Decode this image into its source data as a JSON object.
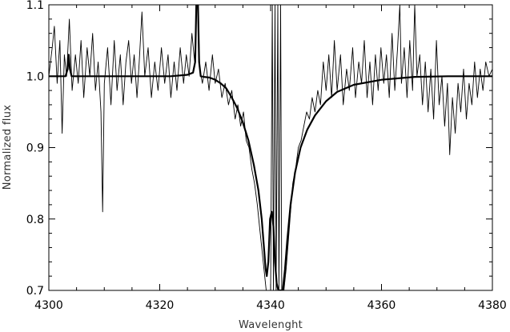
{
  "chart_data": {
    "type": "line",
    "title": "",
    "xlabel": "Wavelenght",
    "ylabel": "Normalized flux",
    "xlim": [
      4300,
      4380
    ],
    "ylim": [
      0.7,
      1.1
    ],
    "x_ticks": [
      4300,
      4320,
      4340,
      4360,
      4380
    ],
    "x_tick_labels": [
      "4300",
      "4320",
      "4340",
      "4360",
      "4380"
    ],
    "y_ticks": [
      0.7,
      0.8,
      0.9,
      1.0,
      1.1
    ],
    "y_tick_labels": [
      "0.7",
      "0.8",
      "0.9",
      "1.0",
      "1.1"
    ],
    "grid": false,
    "series": [
      {
        "role": "observed",
        "color": "#000000",
        "points": [
          [
            4300.0,
            1.0
          ],
          [
            4300.6,
            1.04
          ],
          [
            4301.0,
            1.07
          ],
          [
            4301.5,
            0.99
          ],
          [
            4302.0,
            1.05
          ],
          [
            4302.4,
            0.92
          ],
          [
            4302.8,
            1.03
          ],
          [
            4303.2,
            1.0
          ],
          [
            4303.7,
            1.08
          ],
          [
            4304.2,
            0.98
          ],
          [
            4304.8,
            1.03
          ],
          [
            4305.3,
            0.99
          ],
          [
            4305.8,
            1.05
          ],
          [
            4306.3,
            0.97
          ],
          [
            4306.9,
            1.04
          ],
          [
            4307.4,
            1.0
          ],
          [
            4307.9,
            1.06
          ],
          [
            4308.4,
            0.98
          ],
          [
            4308.9,
            1.02
          ],
          [
            4309.4,
            0.95
          ],
          [
            4309.7,
            0.81
          ],
          [
            4310.0,
            0.99
          ],
          [
            4310.6,
            1.04
          ],
          [
            4311.2,
            0.96
          ],
          [
            4311.8,
            1.05
          ],
          [
            4312.3,
            0.98
          ],
          [
            4312.9,
            1.03
          ],
          [
            4313.4,
            0.96
          ],
          [
            4313.9,
            1.02
          ],
          [
            4314.4,
            1.05
          ],
          [
            4314.9,
            0.99
          ],
          [
            4315.4,
            1.03
          ],
          [
            4315.9,
            0.97
          ],
          [
            4316.3,
            1.02
          ],
          [
            4316.8,
            1.09
          ],
          [
            4317.3,
            1.0
          ],
          [
            4317.9,
            1.04
          ],
          [
            4318.5,
            0.97
          ],
          [
            4319.1,
            1.02
          ],
          [
            4319.7,
            0.98
          ],
          [
            4320.3,
            1.04
          ],
          [
            4320.9,
            0.99
          ],
          [
            4321.5,
            1.03
          ],
          [
            4322.0,
            0.97
          ],
          [
            4322.6,
            1.02
          ],
          [
            4323.1,
            0.98
          ],
          [
            4323.7,
            1.04
          ],
          [
            4324.3,
            0.99
          ],
          [
            4324.8,
            1.03
          ],
          [
            4325.3,
            1.0
          ],
          [
            4325.8,
            1.06
          ],
          [
            4326.3,
            1.02
          ],
          [
            4326.6,
            1.1
          ],
          [
            4326.9,
            1.1
          ],
          [
            4327.2,
            1.01
          ],
          [
            4327.7,
            0.99
          ],
          [
            4328.3,
            1.02
          ],
          [
            4328.9,
            0.98
          ],
          [
            4329.5,
            1.03
          ],
          [
            4330.0,
            0.99
          ],
          [
            4330.6,
            1.01
          ],
          [
            4331.2,
            0.97
          ],
          [
            4331.8,
            0.99
          ],
          [
            4332.4,
            0.96
          ],
          [
            4333.0,
            0.98
          ],
          [
            4333.6,
            0.94
          ],
          [
            4334.1,
            0.96
          ],
          [
            4334.6,
            0.93
          ],
          [
            4335.1,
            0.95
          ],
          [
            4335.6,
            0.91
          ],
          [
            4336.1,
            0.9
          ],
          [
            4336.6,
            0.87
          ],
          [
            4337.1,
            0.85
          ],
          [
            4337.6,
            0.82
          ],
          [
            4338.0,
            0.79
          ],
          [
            4338.4,
            0.76
          ],
          [
            4338.8,
            0.73
          ],
          [
            4339.2,
            0.7
          ],
          [
            4339.6,
            0.7
          ],
          [
            4340.0,
            0.7
          ],
          [
            4340.3,
            1.1
          ],
          [
            4340.5,
            0.7
          ],
          [
            4340.8,
            1.1
          ],
          [
            4341.0,
            0.7
          ],
          [
            4341.3,
            1.1
          ],
          [
            4341.5,
            0.7
          ],
          [
            4341.8,
            1.1
          ],
          [
            4342.0,
            0.7
          ],
          [
            4342.4,
            0.7
          ],
          [
            4342.8,
            0.73
          ],
          [
            4343.2,
            0.77
          ],
          [
            4343.6,
            0.81
          ],
          [
            4344.0,
            0.85
          ],
          [
            4344.5,
            0.87
          ],
          [
            4345.0,
            0.9
          ],
          [
            4345.5,
            0.91
          ],
          [
            4346.0,
            0.93
          ],
          [
            4346.5,
            0.95
          ],
          [
            4347.0,
            0.94
          ],
          [
            4347.5,
            0.97
          ],
          [
            4348.0,
            0.95
          ],
          [
            4348.5,
            0.98
          ],
          [
            4349.0,
            0.96
          ],
          [
            4349.5,
            1.02
          ],
          [
            4350.0,
            0.98
          ],
          [
            4350.5,
            1.03
          ],
          [
            4351.0,
            0.97
          ],
          [
            4351.5,
            1.05
          ],
          [
            4352.0,
            0.98
          ],
          [
            4352.6,
            1.03
          ],
          [
            4353.1,
            0.96
          ],
          [
            4353.7,
            1.01
          ],
          [
            4354.2,
            0.98
          ],
          [
            4354.8,
            1.04
          ],
          [
            4355.3,
            0.97
          ],
          [
            4355.9,
            1.02
          ],
          [
            4356.4,
            0.99
          ],
          [
            4356.9,
            1.05
          ],
          [
            4357.4,
            0.97
          ],
          [
            4357.9,
            1.02
          ],
          [
            4358.4,
            0.96
          ],
          [
            4358.9,
            1.03
          ],
          [
            4359.4,
            0.98
          ],
          [
            4359.9,
            1.04
          ],
          [
            4360.4,
            0.99
          ],
          [
            4360.9,
            1.03
          ],
          [
            4361.4,
            0.97
          ],
          [
            4361.9,
            1.06
          ],
          [
            4362.4,
            0.98
          ],
          [
            4362.9,
            1.04
          ],
          [
            4363.3,
            1.1
          ],
          [
            4363.6,
            0.99
          ],
          [
            4364.1,
            1.04
          ],
          [
            4364.6,
            0.97
          ],
          [
            4365.1,
            1.05
          ],
          [
            4365.6,
            0.98
          ],
          [
            4366.0,
            1.1
          ],
          [
            4366.4,
            1.0
          ],
          [
            4366.9,
            1.03
          ],
          [
            4367.4,
            0.96
          ],
          [
            4367.9,
            1.02
          ],
          [
            4368.4,
            0.95
          ],
          [
            4368.9,
            1.01
          ],
          [
            4369.4,
            0.94
          ],
          [
            4369.9,
            1.05
          ],
          [
            4370.4,
            0.96
          ],
          [
            4370.9,
            1.0
          ],
          [
            4371.4,
            0.93
          ],
          [
            4371.9,
            0.99
          ],
          [
            4372.3,
            0.89
          ],
          [
            4372.8,
            0.97
          ],
          [
            4373.3,
            0.92
          ],
          [
            4373.8,
            0.99
          ],
          [
            4374.3,
            0.95
          ],
          [
            4374.8,
            1.01
          ],
          [
            4375.3,
            0.94
          ],
          [
            4375.8,
            0.99
          ],
          [
            4376.3,
            0.96
          ],
          [
            4376.8,
            1.02
          ],
          [
            4377.3,
            0.97
          ],
          [
            4377.8,
            1.01
          ],
          [
            4378.3,
            0.98
          ],
          [
            4378.8,
            1.02
          ],
          [
            4379.4,
            1.0
          ],
          [
            4380.0,
            1.01
          ]
        ]
      },
      {
        "role": "model",
        "color": "#000000",
        "points": [
          [
            4300.0,
            1.0
          ],
          [
            4303.0,
            1.0
          ],
          [
            4303.4,
            1.01
          ],
          [
            4303.6,
            1.03
          ],
          [
            4303.8,
            1.01
          ],
          [
            4304.1,
            1.0
          ],
          [
            4310.0,
            1.0
          ],
          [
            4318.0,
            1.0
          ],
          [
            4322.0,
            1.0
          ],
          [
            4325.0,
            1.002
          ],
          [
            4326.0,
            1.005
          ],
          [
            4326.4,
            1.02
          ],
          [
            4326.6,
            1.1
          ],
          [
            4326.9,
            1.1
          ],
          [
            4327.1,
            1.02
          ],
          [
            4327.4,
            1.0
          ],
          [
            4328.0,
            0.999
          ],
          [
            4329.0,
            0.998
          ],
          [
            4330.0,
            0.995
          ],
          [
            4331.0,
            0.99
          ],
          [
            4332.0,
            0.983
          ],
          [
            4333.0,
            0.97
          ],
          [
            4334.0,
            0.955
          ],
          [
            4335.0,
            0.935
          ],
          [
            4336.0,
            0.91
          ],
          [
            4337.0,
            0.875
          ],
          [
            4337.8,
            0.84
          ],
          [
            4338.4,
            0.8
          ],
          [
            4338.8,
            0.76
          ],
          [
            4339.1,
            0.73
          ],
          [
            4339.3,
            0.72
          ],
          [
            4339.6,
            0.74
          ],
          [
            4339.9,
            0.8
          ],
          [
            4340.2,
            0.81
          ],
          [
            4340.5,
            0.79
          ],
          [
            4340.8,
            0.74
          ],
          [
            4341.1,
            0.71
          ],
          [
            4341.4,
            0.7
          ],
          [
            4341.8,
            0.7
          ],
          [
            4342.2,
            0.7
          ],
          [
            4342.6,
            0.73
          ],
          [
            4343.0,
            0.77
          ],
          [
            4343.6,
            0.82
          ],
          [
            4344.4,
            0.865
          ],
          [
            4345.4,
            0.9
          ],
          [
            4346.6,
            0.925
          ],
          [
            4348.0,
            0.945
          ],
          [
            4350.0,
            0.965
          ],
          [
            4352.0,
            0.978
          ],
          [
            4355.0,
            0.988
          ],
          [
            4360.0,
            0.995
          ],
          [
            4366.0,
            0.999
          ],
          [
            4372.0,
            1.0
          ],
          [
            4380.0,
            1.0
          ]
        ]
      }
    ]
  }
}
